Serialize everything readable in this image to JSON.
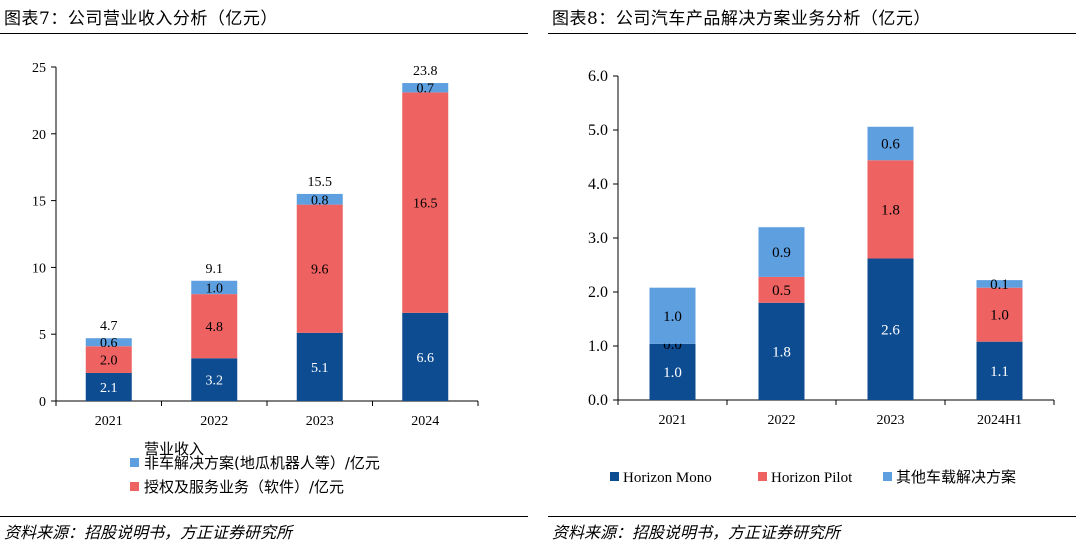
{
  "colors": {
    "navy": "#0E4C92",
    "red": "#EE6262",
    "light_blue": "#5E9FE0",
    "axis": "#000000",
    "inner_text_dark": "#ffffff",
    "inner_text_light": "#000000"
  },
  "left": {
    "title": "图表7：公司营业收入分析（亿元）",
    "source": "资料来源：招股说明书，方正证券研究所",
    "legend_title": "营业收入",
    "chart_data": {
      "type": "bar",
      "stacked": true,
      "categories": [
        "2021",
        "2022",
        "2023",
        "2024"
      ],
      "ylim": [
        0,
        25
      ],
      "yticks": [
        "0",
        "5",
        "10",
        "15",
        "20",
        "25"
      ],
      "ytick_values": [
        0,
        5,
        10,
        15,
        20,
        25
      ],
      "series": [
        {
          "name": "",
          "values": [
            2.1,
            3.2,
            5.1,
            6.6
          ],
          "labels": [
            "2.1",
            "3.2",
            "5.1",
            "6.6"
          ],
          "color": "#0E4C92",
          "label_color": "#ffffff"
        },
        {
          "name": "授权及服务业务（软件）/亿元",
          "values": [
            2.0,
            4.8,
            9.6,
            16.5
          ],
          "labels": [
            "2.0",
            "4.8",
            "9.6",
            "16.5"
          ],
          "color": "#EE6262",
          "label_color": "#000000"
        },
        {
          "name": "非车解决方案(地瓜机器人等）/亿元",
          "values": [
            0.6,
            1.0,
            0.8,
            0.7
          ],
          "labels": [
            "0.6",
            "1.0",
            "0.8",
            "0.7"
          ],
          "color": "#5E9FE0",
          "label_color": "#000000"
        }
      ],
      "totals": [
        "4.7",
        "9.1",
        "15.5",
        "23.8"
      ],
      "legend": [
        {
          "name": "非车解决方案(地瓜机器人等）/亿元",
          "color": "#5E9FE0"
        },
        {
          "name": "授权及服务业务（软件）/亿元",
          "color": "#EE6262"
        }
      ],
      "legend_position": "bottom-center",
      "grid": false
    }
  },
  "right": {
    "title": "图表8：公司汽车产品解决方案业务分析（亿元）",
    "source": "资料来源：招股说明书，方正证券研究所",
    "chart_data": {
      "type": "bar",
      "stacked": true,
      "categories": [
        "2021",
        "2022",
        "2023",
        "2024H1"
      ],
      "ylim": [
        0,
        6
      ],
      "yticks": [
        "0.0",
        "1.0",
        "2.0",
        "3.0",
        "4.0",
        "5.0",
        "6.0"
      ],
      "ytick_values": [
        0,
        1,
        2,
        3,
        4,
        5,
        6
      ],
      "series": [
        {
          "name": "Horizon Mono",
          "values": [
            1.04,
            1.8,
            2.62,
            1.08
          ],
          "labels": [
            "1.0",
            "1.8",
            "2.6",
            "1.1"
          ],
          "color": "#0E4C92",
          "label_color": "#ffffff"
        },
        {
          "name": "Horizon Pilot",
          "values": [
            0.0,
            0.48,
            1.82,
            1.0
          ],
          "labels": [
            "0.0",
            "0.5",
            "1.8",
            "1.0"
          ],
          "color": "#EE6262",
          "label_color": "#000000"
        },
        {
          "name": "其他车载解决方案",
          "values": [
            1.04,
            0.92,
            0.62,
            0.14
          ],
          "labels": [
            "1.0",
            "0.9",
            "0.6",
            "0.1"
          ],
          "color": "#5E9FE0",
          "label_color": "#000000"
        }
      ],
      "legend": [
        {
          "name": "Horizon Mono",
          "color": "#0E4C92"
        },
        {
          "name": "Horizon Pilot",
          "color": "#EE6262"
        },
        {
          "name": "其他车载解决方案",
          "color": "#5E9FE0"
        }
      ],
      "legend_position": "bottom",
      "grid": false
    }
  }
}
